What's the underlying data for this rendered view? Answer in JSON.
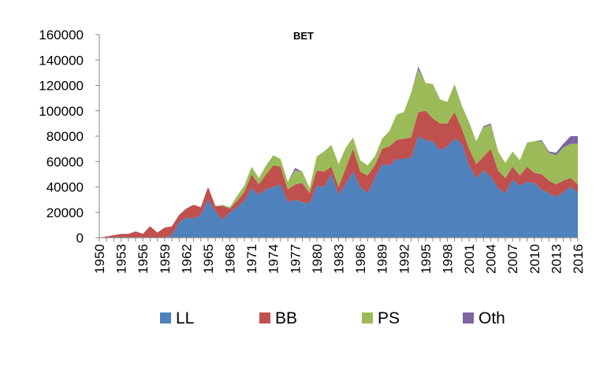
{
  "chart_data": {
    "type": "area",
    "title": "BET",
    "xlabel": "",
    "ylabel": "",
    "ylim": [
      0,
      160000
    ],
    "y_ticks": [
      0,
      20000,
      40000,
      60000,
      80000,
      100000,
      120000,
      140000,
      160000
    ],
    "y_tick_labels": [
      "0",
      "20000",
      "40000",
      "60000",
      "80000",
      "100000",
      "120000",
      "140000",
      "160000"
    ],
    "x_tick_labels": [
      "1950",
      "1953",
      "1956",
      "1959",
      "1962",
      "1965",
      "1968",
      "1971",
      "1974",
      "1977",
      "1980",
      "1983",
      "1986",
      "1989",
      "1992",
      "1995",
      "1998",
      "2001",
      "2004",
      "2007",
      "2010",
      "2013",
      "2016"
    ],
    "x": [
      1950,
      1951,
      1952,
      1953,
      1954,
      1955,
      1956,
      1957,
      1958,
      1959,
      1960,
      1961,
      1962,
      1963,
      1964,
      1965,
      1966,
      1967,
      1968,
      1969,
      1970,
      1971,
      1972,
      1973,
      1974,
      1975,
      1976,
      1977,
      1978,
      1979,
      1980,
      1981,
      1982,
      1983,
      1984,
      1985,
      1986,
      1987,
      1988,
      1989,
      1990,
      1991,
      1992,
      1993,
      1994,
      1995,
      1996,
      1997,
      1998,
      1999,
      2000,
      2001,
      2002,
      2003,
      2004,
      2005,
      2006,
      2007,
      2008,
      2009,
      2010,
      2011,
      2012,
      2013,
      2014,
      2015,
      2016
    ],
    "stacked": true,
    "grid": false,
    "legend_position": "bottom",
    "series": [
      {
        "name": "LL",
        "color": "#4F81BD",
        "values": [
          0,
          0,
          0,
          0,
          0,
          0,
          0,
          0,
          0,
          0,
          2000,
          12000,
          16000,
          15000,
          18000,
          30000,
          21000,
          14000,
          20000,
          24000,
          29000,
          39000,
          34000,
          38000,
          40000,
          42000,
          28000,
          30000,
          28000,
          27000,
          41000,
          40000,
          50000,
          34000,
          43000,
          52000,
          40000,
          35000,
          47000,
          58000,
          57000,
          62000,
          62000,
          63000,
          80000,
          77000,
          76000,
          69000,
          72000,
          78000,
          74000,
          57000,
          47000,
          53000,
          48000,
          39000,
          35000,
          46000,
          41000,
          44000,
          43000,
          38000,
          35000,
          32000,
          36000,
          40000,
          36000
        ]
      },
      {
        "name": "BB",
        "color": "#C0504D",
        "values": [
          0,
          1000,
          2000,
          3000,
          3000,
          5000,
          3000,
          9000,
          4000,
          8000,
          7000,
          6000,
          7000,
          11000,
          6000,
          10000,
          4000,
          11000,
          3000,
          5000,
          7000,
          11000,
          8000,
          12000,
          17000,
          14000,
          10000,
          12000,
          15000,
          8000,
          12000,
          12000,
          6000,
          6000,
          12000,
          18000,
          12000,
          14000,
          10000,
          12000,
          15000,
          15000,
          16000,
          16000,
          19000,
          23000,
          18000,
          21000,
          18000,
          21000,
          12000,
          13000,
          11000,
          11000,
          22000,
          14000,
          12000,
          10000,
          8000,
          12000,
          8000,
          12000,
          10000,
          10000,
          9000,
          7000,
          6000
        ]
      },
      {
        "name": "PS",
        "color": "#9BBB59",
        "values": [
          0,
          0,
          0,
          0,
          0,
          0,
          0,
          0,
          0,
          0,
          0,
          0,
          0,
          0,
          0,
          0,
          0,
          1000,
          1000,
          4000,
          5000,
          6000,
          5000,
          7000,
          8000,
          6000,
          6000,
          11000,
          9000,
          4000,
          11000,
          16000,
          17000,
          18000,
          16000,
          9000,
          9000,
          8000,
          7000,
          8000,
          12000,
          20000,
          21000,
          35000,
          34000,
          22000,
          27000,
          19000,
          17000,
          22000,
          18000,
          21000,
          18000,
          23000,
          19000,
          15000,
          12000,
          12000,
          12000,
          19000,
          25000,
          26000,
          22000,
          23000,
          26000,
          27000,
          32000
        ]
      },
      {
        "name": "Oth",
        "color": "#8064A2",
        "values": [
          0,
          0,
          0,
          0,
          0,
          0,
          0,
          0,
          0,
          0,
          0,
          0,
          0,
          0,
          0,
          0,
          0,
          0,
          0,
          0,
          0,
          0,
          0,
          0,
          0,
          0,
          0,
          2000,
          0,
          0,
          0,
          0,
          0,
          0,
          0,
          0,
          0,
          0,
          0,
          0,
          0,
          0,
          0,
          0,
          2000,
          0,
          0,
          0,
          0,
          0,
          0,
          0,
          0,
          1000,
          1000,
          0,
          0,
          0,
          0,
          0,
          0,
          1000,
          1000,
          2000,
          3000,
          6000,
          6000
        ]
      }
    ]
  }
}
